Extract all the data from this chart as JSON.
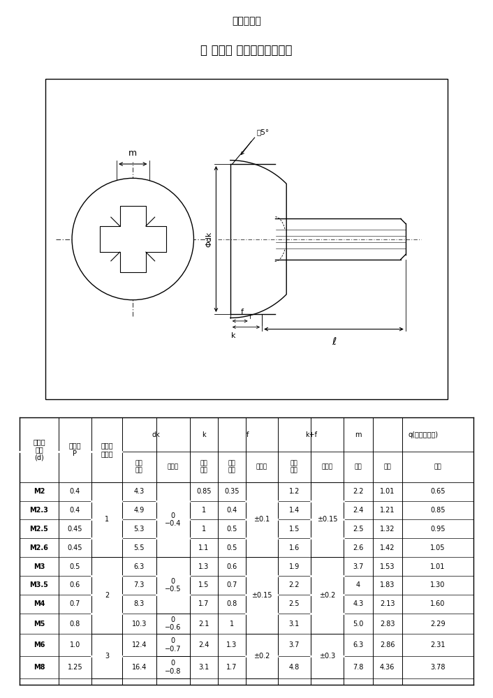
{
  "title_line1": "図面／規格",
  "title_line2": "【 （＋） バインド小ねじ】",
  "bg_color": "#ffffff",
  "row_col_data": [
    [
      "M2",
      "0.4",
      "4.3",
      "0.85",
      "0.35",
      "1.2",
      "2.2",
      "1.01",
      "0.65"
    ],
    [
      "M2.3",
      "0.4",
      "4.9",
      "1",
      "0.4",
      "1.4",
      "2.4",
      "1.21",
      "0.85"
    ],
    [
      "M2.5",
      "0.45",
      "5.3",
      "1",
      "0.5",
      "1.5",
      "2.5",
      "1.32",
      "0.95"
    ],
    [
      "M2.6",
      "0.45",
      "5.5",
      "1.1",
      "0.5",
      "1.6",
      "2.6",
      "1.42",
      "1.05"
    ],
    [
      "M3",
      "0.5",
      "6.3",
      "1.3",
      "0.6",
      "1.9",
      "3.7",
      "1.53",
      "1.01"
    ],
    [
      "M3.5",
      "0.6",
      "7.3",
      "1.5",
      "0.7",
      "2.2",
      "4",
      "1.83",
      "1.30"
    ],
    [
      "M4",
      "0.7",
      "8.3",
      "1.7",
      "0.8",
      "2.5",
      "4.3",
      "2.13",
      "1.60"
    ],
    [
      "M5",
      "0.8",
      "10.3",
      "2.1",
      "1",
      "3.1",
      "5.0",
      "2.83",
      "2.29"
    ],
    [
      "M6",
      "1.0",
      "12.4",
      "2.4",
      "1.3",
      "3.7",
      "6.3",
      "2.86",
      "2.31"
    ],
    [
      "M8",
      "1.25",
      "16.4",
      "3.1",
      "1.7",
      "4.8",
      "7.8",
      "4.36",
      "3.78"
    ]
  ],
  "cross_no_merges": [
    [
      0,
      3,
      "1"
    ],
    [
      4,
      7,
      "2"
    ],
    [
      8,
      9,
      "3"
    ]
  ],
  "dk_tol_merges": [
    [
      0,
      3,
      "0\n−0.4"
    ],
    [
      4,
      6,
      "0\n−0.5"
    ],
    [
      7,
      7,
      "0\n−0.6"
    ],
    [
      8,
      8,
      "0\n−0.7"
    ],
    [
      9,
      9,
      "0\n−0.8"
    ]
  ],
  "f_tol_merges": [
    [
      0,
      3,
      "±0.1"
    ],
    [
      4,
      7,
      "±0.15"
    ],
    [
      8,
      9,
      "±0.2"
    ]
  ],
  "kf_tol_merges": [
    [
      0,
      3,
      "±0.15"
    ],
    [
      4,
      7,
      "±0.2"
    ],
    [
      8,
      9,
      "±0.3"
    ]
  ]
}
